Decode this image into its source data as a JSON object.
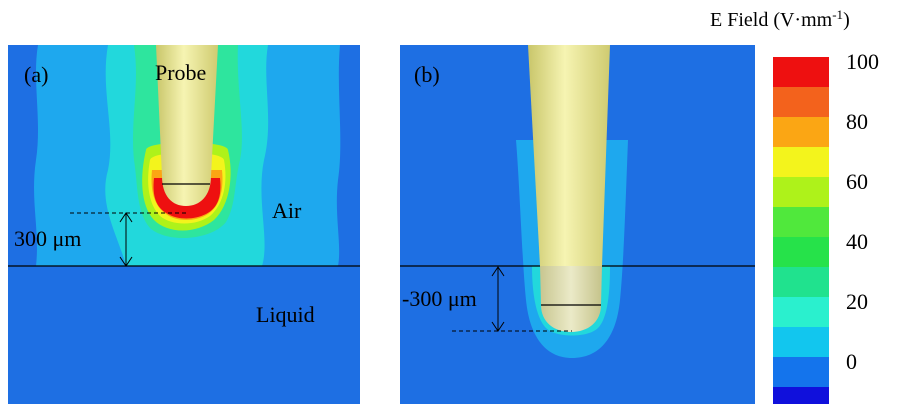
{
  "colorbar": {
    "title": "E Field (V·mm",
    "title_exp": "-1",
    "title_close": ")",
    "ticks": [
      "100",
      "80",
      "60",
      "40",
      "20",
      "0"
    ],
    "colors": [
      "#ee1010",
      "#f3621c",
      "#fba614",
      "#f3f41c",
      "#aef21a",
      "#50e83c",
      "#26e24a",
      "#20e28e",
      "#2af0ce",
      "#12c6ee",
      "#1474ec",
      "#1010dc"
    ]
  },
  "panel_a": {
    "label": "(a)",
    "probe_label": "Probe",
    "air_label": "Air",
    "liquid_label": "Liquid",
    "distance_label": "300 μm"
  },
  "panel_b": {
    "label": "(b)",
    "distance_label": "-300 μm"
  },
  "colors": {
    "background_field": "#1e6fe3",
    "field_low": "#1ea8ee",
    "field_mid": "#22d8dc",
    "field_green": "#2ee59e",
    "probe": "#ecec9a"
  }
}
